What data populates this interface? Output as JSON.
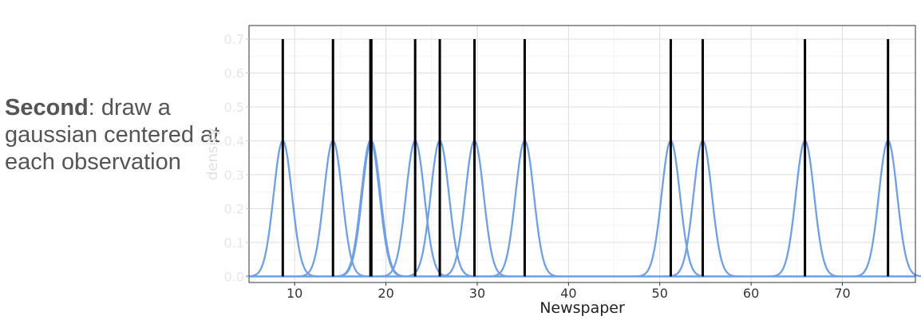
{
  "caption": {
    "bold": "Second",
    "rest": ": draw a gaussian centered at each observation"
  },
  "chart_data": {
    "type": "line",
    "xlabel": "Newspaper",
    "ylabel": "density",
    "xlim": [
      5,
      78
    ],
    "ylim": [
      -0.018,
      0.74
    ],
    "x_ticks": [
      10,
      20,
      30,
      40,
      50,
      60,
      70
    ],
    "y_ticks": [
      0.0,
      0.1,
      0.2,
      0.3,
      0.4,
      0.5,
      0.6,
      0.7
    ],
    "y_tick_labels": [
      "0.0",
      "0.1",
      "0.2",
      "0.3",
      "0.4",
      "0.5",
      "0.6",
      "0.7"
    ],
    "observations": [
      8.7,
      14.2,
      18.3,
      18.4,
      23.2,
      25.9,
      29.7,
      35.2,
      51.2,
      54.7,
      65.9,
      75.0
    ],
    "stem_height": 0.7,
    "gaussian_sd": 1.0,
    "gaussian_peak": 0.4,
    "grid": true,
    "colors": {
      "gaussian": "#6f9fe6",
      "stem": "#000000",
      "grid": "#dddddd",
      "panel_border": "#333333"
    }
  }
}
